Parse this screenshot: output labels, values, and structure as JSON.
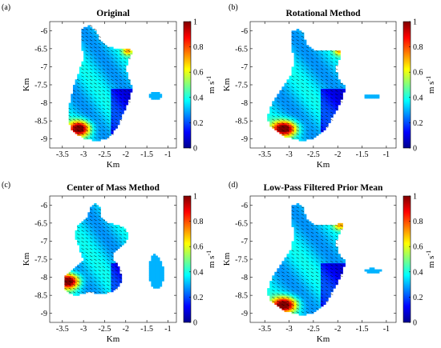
{
  "figure": {
    "colorbar": {
      "ticks": [
        "0",
        "0.2",
        "0.4",
        "0.6",
        "0.8",
        "1"
      ],
      "label": "m s",
      "label_exponent": "-1"
    }
  },
  "chart_data": [
    {
      "type": "heatmap",
      "panel_label": "(a)",
      "title": "Original",
      "xlabel": "Km",
      "ylabel": "Km",
      "xlim": [
        -3.8,
        -0.8
      ],
      "ylim": [
        -9.25,
        -5.75
      ],
      "xticks": [
        "-3.5",
        "-3",
        "-2.5",
        "-2",
        "-1.5",
        "-1"
      ],
      "yticks": [
        "-6",
        "-6.5",
        "-7",
        "-7.5",
        "-8",
        "-8.5",
        "-9"
      ],
      "colorbar_range": [
        0,
        1
      ],
      "colormap": "jet",
      "has_vector_arrows": true,
      "regions": [
        {
          "name": "main",
          "outline": [
            [
              -3.05,
              -5.95
            ],
            [
              -2.85,
              -5.85
            ],
            [
              -2.7,
              -6.0
            ],
            [
              -2.6,
              -6.3
            ],
            [
              -2.4,
              -6.45
            ],
            [
              -2.15,
              -6.5
            ],
            [
              -1.9,
              -6.5
            ],
            [
              -1.85,
              -6.6
            ],
            [
              -1.95,
              -6.8
            ],
            [
              -2.0,
              -7.05
            ],
            [
              -1.95,
              -7.3
            ],
            [
              -1.85,
              -7.55
            ],
            [
              -1.9,
              -7.85
            ],
            [
              -2.05,
              -8.25
            ],
            [
              -2.2,
              -8.65
            ],
            [
              -2.4,
              -8.95
            ],
            [
              -2.65,
              -9.05
            ],
            [
              -2.95,
              -9.0
            ],
            [
              -3.25,
              -8.8
            ],
            [
              -3.35,
              -8.5
            ],
            [
              -3.35,
              -8.1
            ],
            [
              -3.25,
              -7.6
            ],
            [
              -3.1,
              -7.1
            ],
            [
              -3.0,
              -6.75
            ],
            [
              -3.05,
              -6.35
            ]
          ],
          "hotspot": [
            -3.1,
            -8.7
          ],
          "edge_hot": [
            [
              -1.95,
              -6.55
            ]
          ]
        },
        {
          "name": "small",
          "outline": [
            [
              -1.45,
              -7.75
            ],
            [
              -1.35,
              -7.7
            ],
            [
              -1.2,
              -7.72
            ],
            [
              -1.12,
              -7.8
            ],
            [
              -1.2,
              -7.88
            ],
            [
              -1.35,
              -7.9
            ],
            [
              -1.45,
              -7.85
            ]
          ]
        }
      ]
    },
    {
      "type": "heatmap",
      "panel_label": "(b)",
      "title": "Rotational Method",
      "xlabel": "Km",
      "ylabel": "Km",
      "xlim": [
        -3.8,
        -0.8
      ],
      "ylim": [
        -9.25,
        -5.75
      ],
      "xticks": [
        "-3.5",
        "-3",
        "-2.5",
        "-2",
        "-1.5",
        "-1"
      ],
      "yticks": [
        "-6",
        "-6.5",
        "-7",
        "-7.5",
        "-8",
        "-8.5",
        "-9"
      ],
      "colorbar_range": [
        0,
        1
      ],
      "colormap": "jet",
      "has_vector_arrows": true,
      "regions": [
        {
          "name": "main",
          "outline": [
            [
              -2.95,
              -6.0
            ],
            [
              -2.8,
              -5.95
            ],
            [
              -2.7,
              -6.1
            ],
            [
              -2.65,
              -6.4
            ],
            [
              -2.45,
              -6.55
            ],
            [
              -2.15,
              -6.55
            ],
            [
              -1.95,
              -6.55
            ],
            [
              -1.95,
              -6.75
            ],
            [
              -2.05,
              -7.0
            ],
            [
              -2.0,
              -7.3
            ],
            [
              -1.85,
              -7.55
            ],
            [
              -1.9,
              -7.85
            ],
            [
              -2.05,
              -8.25
            ],
            [
              -2.25,
              -8.7
            ],
            [
              -2.45,
              -8.95
            ],
            [
              -2.75,
              -9.05
            ],
            [
              -3.05,
              -8.95
            ],
            [
              -3.35,
              -8.7
            ],
            [
              -3.45,
              -8.4
            ],
            [
              -3.35,
              -8.0
            ],
            [
              -3.15,
              -7.6
            ],
            [
              -2.95,
              -7.2
            ],
            [
              -2.9,
              -6.8
            ],
            [
              -2.95,
              -6.4
            ]
          ],
          "hotspot": [
            -3.1,
            -8.7
          ],
          "edge_hot": [
            [
              -1.95,
              -6.55
            ]
          ]
        },
        {
          "name": "small",
          "outline": [
            [
              -1.45,
              -7.8
            ],
            [
              -1.3,
              -7.75
            ],
            [
              -1.15,
              -7.78
            ],
            [
              -1.1,
              -7.82
            ],
            [
              -1.2,
              -7.86
            ],
            [
              -1.35,
              -7.87
            ],
            [
              -1.45,
              -7.84
            ]
          ]
        }
      ]
    },
    {
      "type": "heatmap",
      "panel_label": "(c)",
      "title": "Center of Mass Method",
      "xlabel": "Km",
      "ylabel": "Km",
      "xlim": [
        -3.8,
        -0.8
      ],
      "ylim": [
        -9.25,
        -5.75
      ],
      "xticks": [
        "-3.5",
        "-3",
        "-2.5",
        "-2",
        "-1.5",
        "-1"
      ],
      "yticks": [
        "-6",
        "-6.5",
        "-7",
        "-7.5",
        "-8",
        "-8.5",
        "-9"
      ],
      "colorbar_range": [
        0,
        1
      ],
      "colormap": "jet",
      "has_vector_arrows": true,
      "regions": [
        {
          "name": "main",
          "outline": [
            [
              -2.75,
              -5.95
            ],
            [
              -2.6,
              -6.05
            ],
            [
              -2.6,
              -6.35
            ],
            [
              -2.4,
              -6.5
            ],
            [
              -2.2,
              -6.55
            ],
            [
              -2.0,
              -6.65
            ],
            [
              -1.95,
              -6.9
            ],
            [
              -2.1,
              -7.15
            ],
            [
              -2.3,
              -7.3
            ],
            [
              -2.3,
              -7.5
            ],
            [
              -2.15,
              -7.75
            ],
            [
              -2.1,
              -8.1
            ],
            [
              -2.25,
              -8.35
            ],
            [
              -2.55,
              -8.45
            ],
            [
              -2.9,
              -8.4
            ],
            [
              -3.2,
              -8.5
            ],
            [
              -3.45,
              -8.35
            ],
            [
              -3.45,
              -7.95
            ],
            [
              -3.2,
              -7.75
            ],
            [
              -3.0,
              -7.5
            ],
            [
              -3.1,
              -7.2
            ],
            [
              -3.2,
              -6.85
            ],
            [
              -3.15,
              -6.55
            ],
            [
              -2.95,
              -6.4
            ],
            [
              -2.85,
              -6.1
            ]
          ],
          "hotspot": [
            -3.35,
            -8.1
          ]
        },
        {
          "name": "small",
          "outline": [
            [
              -1.35,
              -7.35
            ],
            [
              -1.2,
              -7.45
            ],
            [
              -1.12,
              -7.7
            ],
            [
              -1.1,
              -8.0
            ],
            [
              -1.2,
              -8.3
            ],
            [
              -1.35,
              -8.3
            ],
            [
              -1.45,
              -8.0
            ],
            [
              -1.45,
              -7.6
            ]
          ]
        }
      ]
    },
    {
      "type": "heatmap",
      "panel_label": "(d)",
      "title": "Low-Pass Filtered Prior Mean",
      "xlabel": "Km",
      "ylabel": "Km",
      "xlim": [
        -3.8,
        -0.8
      ],
      "ylim": [
        -9.25,
        -5.75
      ],
      "xticks": [
        "-3.5",
        "-3",
        "-2.5",
        "-2",
        "-1.5",
        "-1"
      ],
      "yticks": [
        "-6",
        "-6.5",
        "-7",
        "-7.5",
        "-8",
        "-8.5",
        "-9"
      ],
      "colorbar_range": [
        0,
        1
      ],
      "colormap": "jet",
      "has_vector_arrows": true,
      "regions": [
        {
          "name": "main",
          "outline": [
            [
              -2.95,
              -6.0
            ],
            [
              -2.8,
              -5.95
            ],
            [
              -2.7,
              -6.1
            ],
            [
              -2.65,
              -6.4
            ],
            [
              -2.45,
              -6.55
            ],
            [
              -2.15,
              -6.55
            ],
            [
              -1.9,
              -6.5
            ],
            [
              -1.95,
              -6.75
            ],
            [
              -2.05,
              -7.0
            ],
            [
              -2.0,
              -7.3
            ],
            [
              -1.85,
              -7.55
            ],
            [
              -1.9,
              -7.85
            ],
            [
              -2.05,
              -8.25
            ],
            [
              -2.25,
              -8.7
            ],
            [
              -2.45,
              -8.95
            ],
            [
              -2.75,
              -9.05
            ],
            [
              -3.05,
              -8.95
            ],
            [
              -3.35,
              -8.7
            ],
            [
              -3.45,
              -8.4
            ],
            [
              -3.35,
              -8.0
            ],
            [
              -3.15,
              -7.6
            ],
            [
              -2.95,
              -7.2
            ],
            [
              -2.9,
              -6.8
            ],
            [
              -2.95,
              -6.4
            ]
          ],
          "hotspot": [
            -3.1,
            -8.75
          ],
          "edge_hot": [
            [
              -1.95,
              -6.55
            ]
          ]
        },
        {
          "name": "small",
          "outline": [
            [
              -1.45,
              -7.78
            ],
            [
              -1.3,
              -7.74
            ],
            [
              -1.15,
              -7.77
            ],
            [
              -1.1,
              -7.82
            ],
            [
              -1.2,
              -7.87
            ],
            [
              -1.35,
              -7.88
            ],
            [
              -1.45,
              -7.84
            ]
          ]
        }
      ]
    }
  ]
}
